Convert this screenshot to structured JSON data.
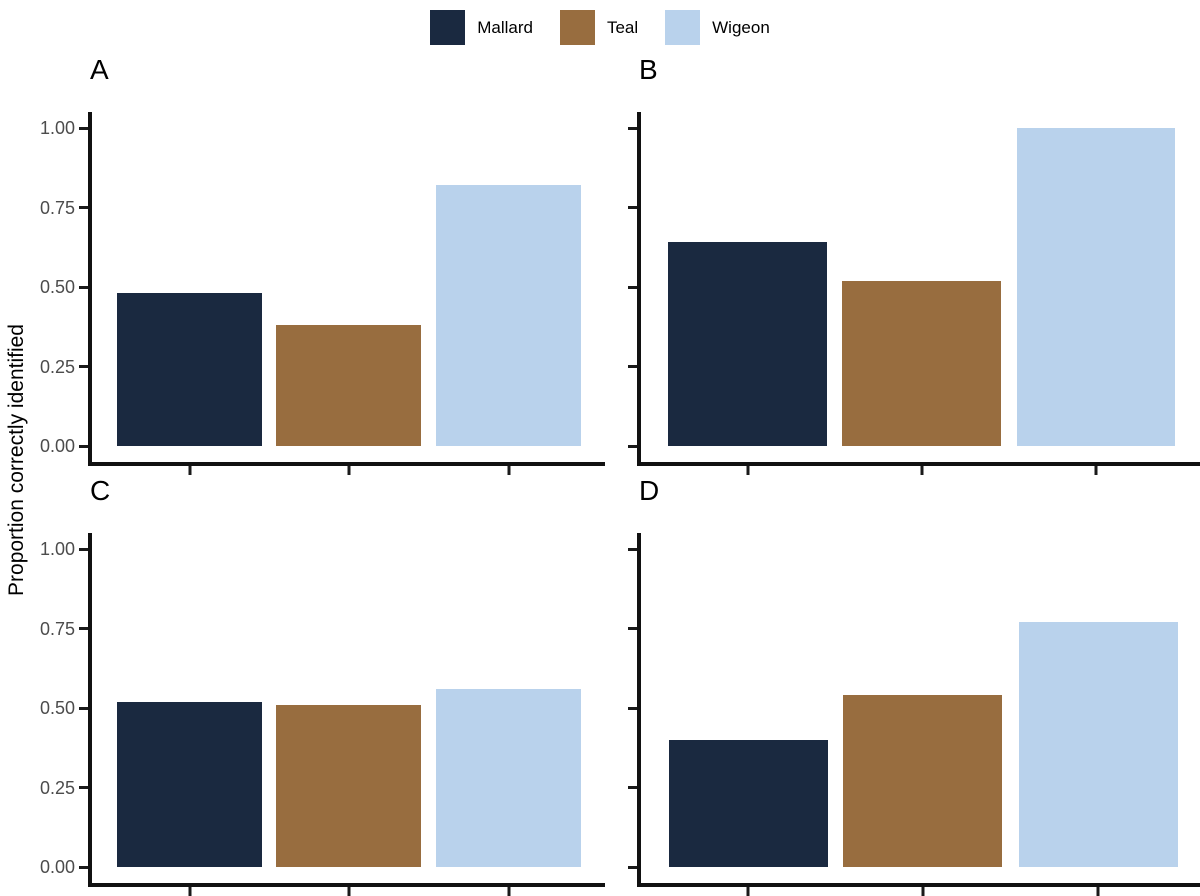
{
  "legend": {
    "items": [
      {
        "label": "Mallard",
        "color": "#1a2940"
      },
      {
        "label": "Teal",
        "color": "#986d3f"
      },
      {
        "label": "Wigeon",
        "color": "#b9d2ec"
      }
    ]
  },
  "axis": {
    "ylabel": "Proportion correctly identified",
    "ylim": [
      0,
      1
    ],
    "y_tick_values": [
      0,
      0.25,
      0.5,
      0.75,
      1.0
    ],
    "y_tick_labels": [
      "0.00",
      "0.25",
      "0.50",
      "0.75",
      "1.00"
    ],
    "x_tick_labels_visible": false
  },
  "colors": {
    "axis_line": "#111111",
    "tick_label": "#4c4c4c",
    "background": "#ffffff"
  },
  "chart_data": [
    {
      "type": "bar",
      "panel_label": "A",
      "categories": [
        "Mallard",
        "Teal",
        "Wigeon"
      ],
      "values": [
        0.48,
        0.38,
        0.82
      ],
      "ylabel": "Proportion correctly identified",
      "ylim": [
        0,
        1
      ],
      "show_y_tick_labels": true,
      "legend_position": "top-center-shared",
      "grid": "off"
    },
    {
      "type": "bar",
      "panel_label": "B",
      "categories": [
        "Mallard",
        "Teal",
        "Wigeon"
      ],
      "values": [
        0.64,
        0.52,
        1.0
      ],
      "ylabel": "Proportion correctly identified",
      "ylim": [
        0,
        1
      ],
      "show_y_tick_labels": false,
      "legend_position": "top-center-shared",
      "grid": "off"
    },
    {
      "type": "bar",
      "panel_label": "C",
      "categories": [
        "Mallard",
        "Teal",
        "Wigeon"
      ],
      "values": [
        0.52,
        0.51,
        0.56
      ],
      "ylabel": "Proportion correctly identified",
      "ylim": [
        0,
        1
      ],
      "show_y_tick_labels": true,
      "legend_position": "top-center-shared",
      "grid": "off"
    },
    {
      "type": "bar",
      "panel_label": "D",
      "categories": [
        "Mallard",
        "Teal",
        "Wigeon"
      ],
      "values": [
        0.4,
        0.54,
        0.77
      ],
      "ylabel": "Proportion correctly identified",
      "ylim": [
        0,
        1
      ],
      "show_y_tick_labels": false,
      "legend_position": "top-center-shared",
      "grid": "off"
    }
  ]
}
